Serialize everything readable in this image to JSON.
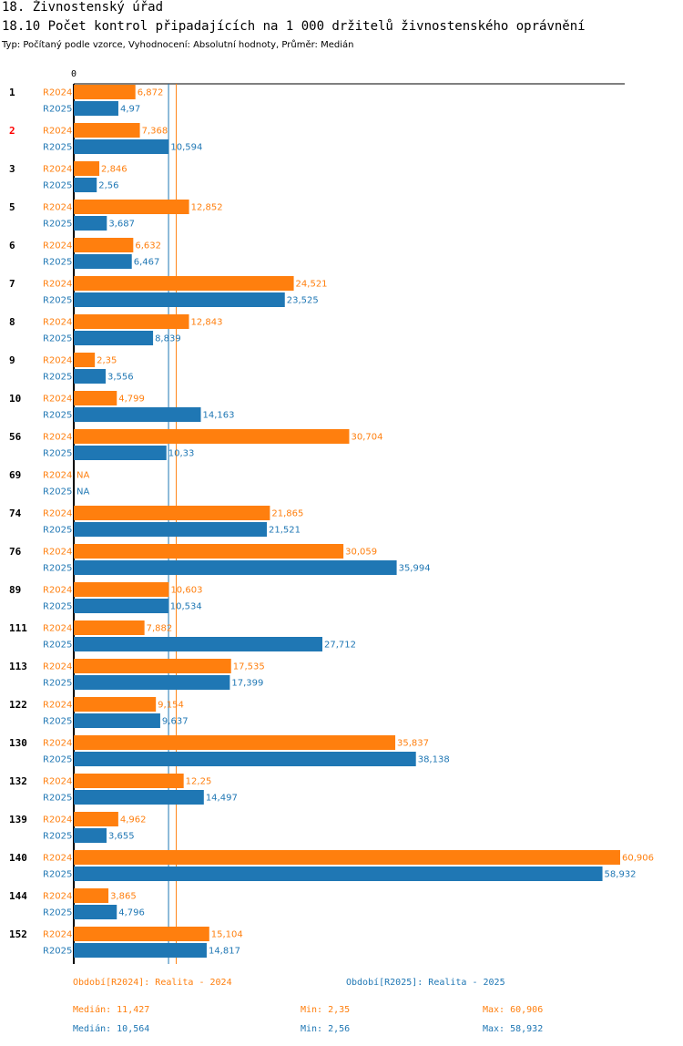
{
  "header": {
    "section_title": "18. Živnostenský úřad",
    "chart_title": "18.10 Počet kontrol připadajících na 1 000 držitelů živnostenského oprávnění",
    "subtitle": "Typ: Počítaný podle vzorce, Vyhodnocení: Absolutní hodnoty, Průměr: Medián"
  },
  "colors": {
    "r2024": "#ff7f0e",
    "r2025": "#1f77b4",
    "highlight": "#ff0000",
    "axis": "#000000"
  },
  "chart_data": {
    "type": "bar",
    "orientation": "horizontal",
    "axis_zero_label": "0",
    "xlim": [
      0,
      60.906
    ],
    "highlight_category": "2",
    "categories": [
      "1",
      "2",
      "3",
      "5",
      "6",
      "7",
      "8",
      "9",
      "10",
      "56",
      "69",
      "74",
      "76",
      "89",
      "111",
      "113",
      "122",
      "130",
      "132",
      "139",
      "140",
      "144",
      "152"
    ],
    "series": [
      {
        "name": "R2024",
        "color": "#ff7f0e",
        "values": [
          6.872,
          7.368,
          2.846,
          12.852,
          6.632,
          24.521,
          12.843,
          2.35,
          4.799,
          30.704,
          null,
          21.865,
          30.059,
          10.603,
          7.882,
          17.535,
          9.154,
          35.837,
          12.25,
          4.962,
          60.906,
          3.865,
          15.104
        ],
        "labels": [
          "6,872",
          "7,368",
          "2,846",
          "12,852",
          "6,632",
          "24,521",
          "12,843",
          "2,35",
          "4,799",
          "30,704",
          "NA",
          "21,865",
          "30,059",
          "10,603",
          "7,882",
          "17,535",
          "9,154",
          "35,837",
          "12,25",
          "4,962",
          "60,906",
          "3,865",
          "15,104"
        ]
      },
      {
        "name": "R2025",
        "color": "#1f77b4",
        "values": [
          4.97,
          10.594,
          2.56,
          3.687,
          6.467,
          23.525,
          8.839,
          3.556,
          14.163,
          10.33,
          null,
          21.521,
          35.994,
          10.534,
          27.712,
          17.399,
          9.637,
          38.138,
          14.497,
          3.655,
          58.932,
          4.796,
          14.817
        ],
        "labels": [
          "4,97",
          "10,594",
          "2,56",
          "3,687",
          "6,467",
          "23,525",
          "8,839",
          "3,556",
          "14,163",
          "10,33",
          "NA",
          "21,521",
          "35,994",
          "10,534",
          "27,712",
          "17,399",
          "9,637",
          "38,138",
          "14,497",
          "3,655",
          "58,932",
          "4,796",
          "14,817"
        ]
      }
    ],
    "median_lines": [
      {
        "series": "R2024",
        "value": 11.427
      },
      {
        "series": "R2025",
        "value": 10.564
      }
    ]
  },
  "legend": {
    "r2024": "Období[R2024]: Realita - 2024",
    "r2025": "Období[R2025]: Realita - 2025"
  },
  "stats": {
    "r2024": {
      "median": "Medián: 11,427",
      "min": "Min: 2,35",
      "max": "Max: 60,906"
    },
    "r2025": {
      "median": "Medián: 10,564",
      "min": "Min: 2,56",
      "max": "Max: 58,932"
    }
  }
}
